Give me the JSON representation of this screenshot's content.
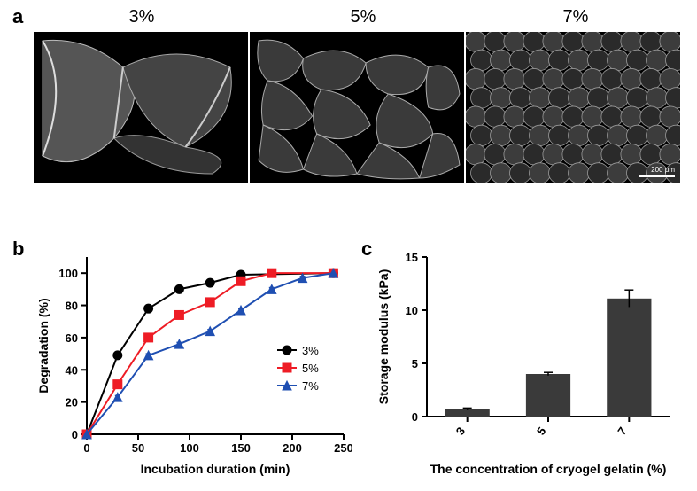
{
  "panel_labels": {
    "a": "a",
    "b": "b",
    "c": "c"
  },
  "sem": {
    "columns": [
      "3%",
      "5%",
      "7%"
    ],
    "scalebar_label": "200 μm"
  },
  "chart_b": {
    "type": "line",
    "xlabel": "Incubation duration (min)",
    "ylabel": "Degradation (%)",
    "xlim": [
      0,
      250
    ],
    "ylim": [
      0,
      110
    ],
    "xticks": [
      0,
      50,
      100,
      150,
      200,
      250
    ],
    "yticks": [
      0,
      20,
      40,
      60,
      80,
      100
    ],
    "axis_color": "#000000",
    "axis_width": 2,
    "tick_fontsize": 13,
    "label_fontsize": 14,
    "label_fontweight": "bold",
    "series": [
      {
        "name": "3%",
        "color": "#000000",
        "marker": "circle",
        "x": [
          0,
          30,
          60,
          90,
          120,
          150,
          240
        ],
        "y": [
          0,
          49,
          78,
          90,
          94,
          99,
          100
        ],
        "err": [
          0,
          1,
          1,
          1,
          1,
          1,
          0
        ]
      },
      {
        "name": "5%",
        "color": "#ee1c25",
        "marker": "square",
        "x": [
          0,
          30,
          60,
          90,
          120,
          150,
          180,
          240
        ],
        "y": [
          0,
          31,
          60,
          74,
          82,
          95,
          100,
          100
        ],
        "err": [
          0,
          1,
          2,
          2,
          2,
          1,
          0,
          0
        ]
      },
      {
        "name": "7%",
        "color": "#1f4fb2",
        "marker": "triangle",
        "x": [
          0,
          30,
          60,
          90,
          120,
          150,
          180,
          210,
          240
        ],
        "y": [
          0,
          23,
          49,
          56,
          64,
          77,
          90,
          97,
          100
        ],
        "err": [
          0,
          1,
          1,
          1,
          1,
          1,
          1,
          1,
          0
        ]
      }
    ],
    "legend": {
      "items": [
        {
          "label": "3%",
          "color": "#000000",
          "marker": "circle"
        },
        {
          "label": "5%",
          "color": "#ee1c25",
          "marker": "square"
        },
        {
          "label": "7%",
          "color": "#1f4fb2",
          "marker": "triangle"
        }
      ],
      "fontsize": 13
    },
    "line_width": 2,
    "marker_size": 5
  },
  "chart_c": {
    "type": "bar",
    "xlabel": "The concentration of cryogel gelatin (%)",
    "ylabel": "Storage modulus (kPa)",
    "categories": [
      "3",
      "5",
      "7"
    ],
    "values": [
      0.7,
      4.0,
      11.1
    ],
    "errors": [
      0.1,
      0.15,
      0.8
    ],
    "ylim": [
      0,
      15
    ],
    "yticks": [
      0,
      5,
      10,
      15
    ],
    "bar_color": "#3a3a3a",
    "axis_color": "#000000",
    "axis_width": 2,
    "tick_fontsize": 13,
    "label_fontsize": 14,
    "label_fontweight": "bold",
    "bar_width": 0.55,
    "xlabel_rotation": -55
  }
}
